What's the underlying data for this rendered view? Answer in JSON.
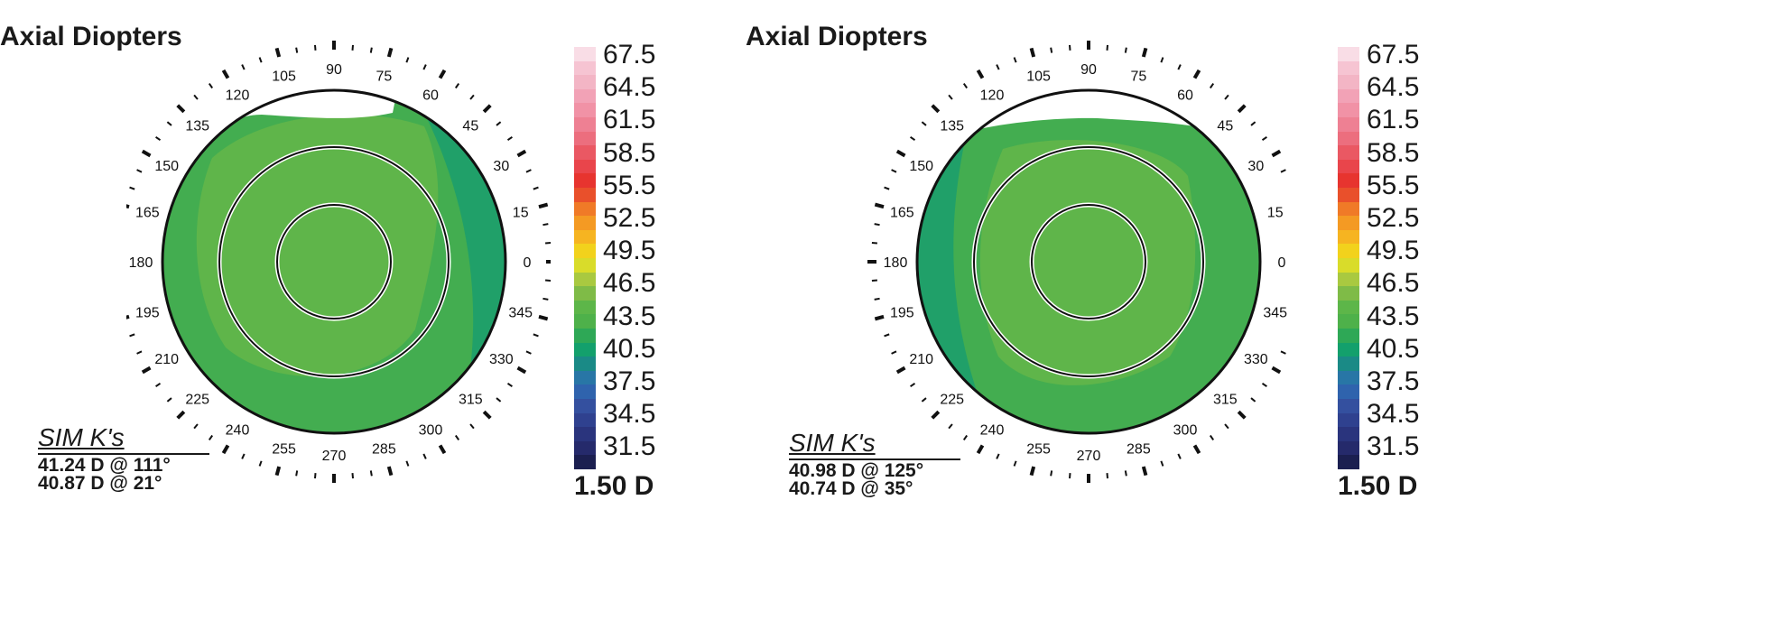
{
  "maps": [
    {
      "title": "Axial Diopters",
      "simk_label": "SIM K's",
      "simk_values": [
        "41.24 D @ 111°",
        "40.87 D @ 21°"
      ],
      "angle_labels": [
        "0",
        "15",
        "30",
        "45",
        "60",
        "75",
        "90",
        "105",
        "120",
        "135",
        "150",
        "165",
        "180",
        "195",
        "210",
        "225",
        "240",
        "255",
        "270",
        "285",
        "300",
        "315",
        "330",
        "345"
      ]
    },
    {
      "title": "Axial Diopters",
      "simk_label": "SIM K's",
      "simk_values": [
        "40.98 D @ 125°",
        "40.74 D @ 35°"
      ],
      "angle_labels": [
        "0",
        "15",
        "30",
        "45",
        "60",
        "75",
        "90",
        "105",
        "120",
        "135",
        "150",
        "165",
        "180",
        "195",
        "210",
        "225",
        "240",
        "255",
        "270",
        "285",
        "300",
        "315",
        "330",
        "345"
      ]
    }
  ],
  "scale": {
    "labels": [
      "67.5",
      "64.5",
      "61.5",
      "58.5",
      "55.5",
      "52.5",
      "49.5",
      "46.5",
      "43.5",
      "40.5",
      "37.5",
      "34.5",
      "31.5"
    ],
    "step": "1.50 D",
    "colors": [
      "#f9dde6",
      "#f6c4d2",
      "#f3b5c5",
      "#f2a2b6",
      "#f192a6",
      "#ee8093",
      "#ec6e7e",
      "#ea5863",
      "#e9454b",
      "#e7342f",
      "#e9502b",
      "#f07a27",
      "#f49a23",
      "#f6b421",
      "#f2d21c",
      "#d9dc2a",
      "#a9c940",
      "#7fbb47",
      "#5db649",
      "#4eb14a",
      "#2ea856",
      "#13a06c",
      "#1a8a86",
      "#2876a6",
      "#2f63ad",
      "#34509f",
      "#2f418f",
      "#2a347d",
      "#252a6b",
      "#1b1f50"
    ]
  },
  "colors": {
    "cornea_main": "#5fb54a",
    "cornea_outer": "#43ad50",
    "cornea_edge": "#20a069",
    "blue_edge": "#2b7fb3",
    "deep_blue": "#3656a6"
  }
}
